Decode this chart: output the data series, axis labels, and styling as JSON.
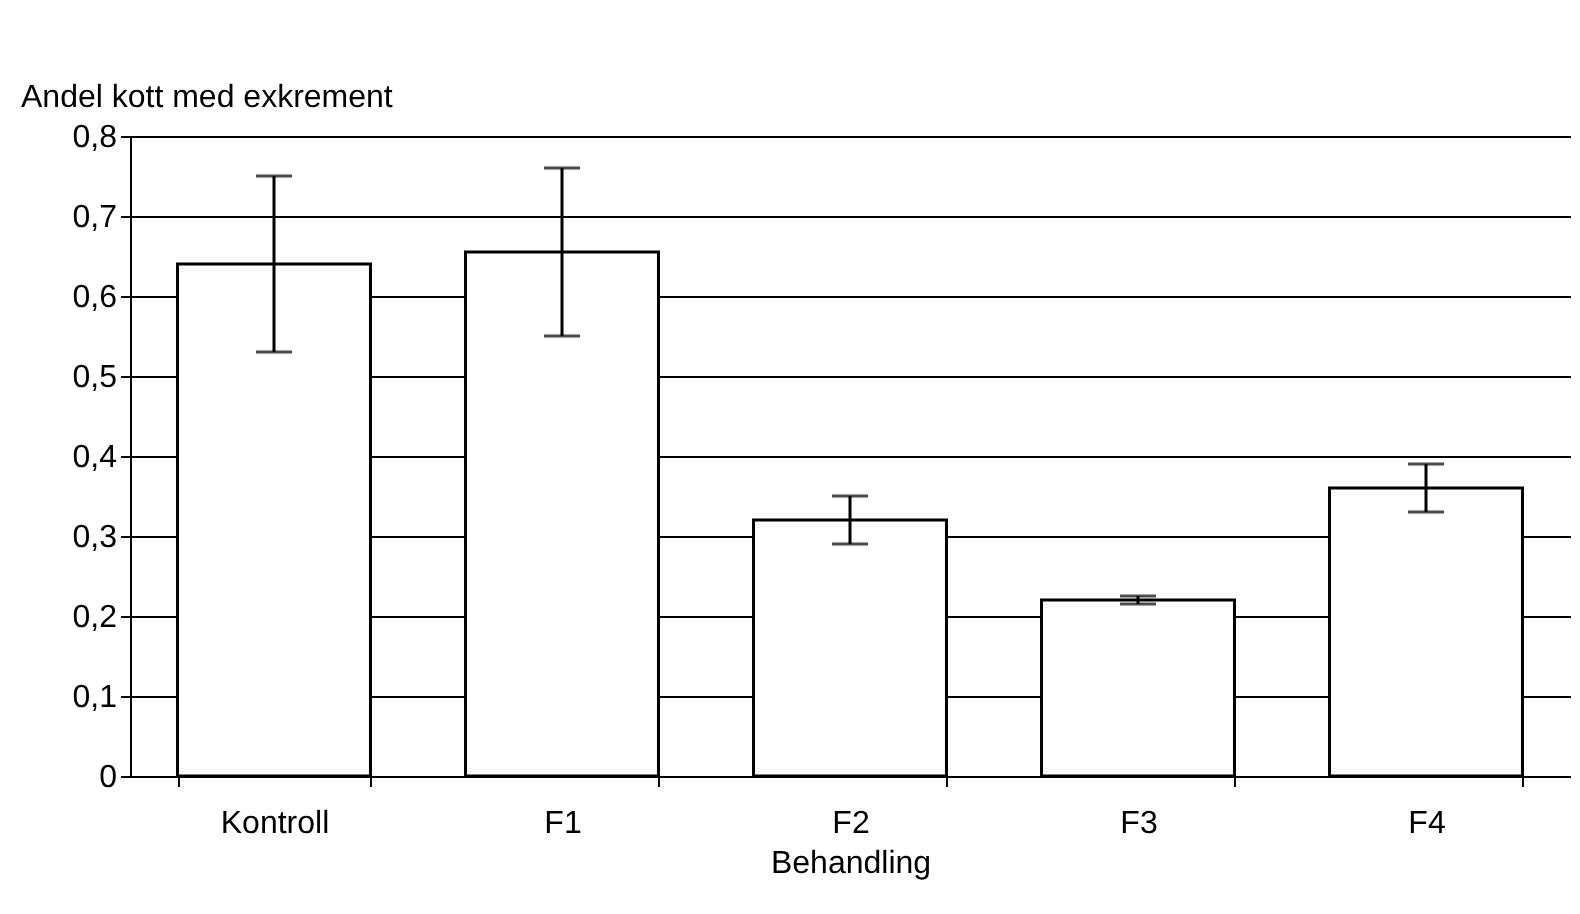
{
  "chart_data": {
    "type": "bar",
    "xlabel": "Behandling",
    "ylabel": "Andel kott med exkrement",
    "categories": [
      "Kontroll",
      "F1",
      "F2",
      "F3",
      "F4"
    ],
    "values": [
      0.64,
      0.655,
      0.32,
      0.22,
      0.36
    ],
    "errors": [
      0.11,
      0.105,
      0.03,
      0.005,
      0.03
    ],
    "color": "#ffffff",
    "ylim": [
      0,
      0.8
    ],
    "yticks": [
      {
        "value": 0,
        "label": "0"
      },
      {
        "value": 0.1,
        "label": "0,1"
      },
      {
        "value": 0.2,
        "label": "0,2"
      },
      {
        "value": 0.3,
        "label": "0,3"
      },
      {
        "value": 0.4,
        "label": "0,4"
      },
      {
        "value": 0.5,
        "label": "0,5"
      },
      {
        "value": 0.6,
        "label": "0,6"
      },
      {
        "value": 0.7,
        "label": "0,7"
      },
      {
        "value": 0.8,
        "label": "0,8"
      }
    ],
    "grid": "y"
  }
}
